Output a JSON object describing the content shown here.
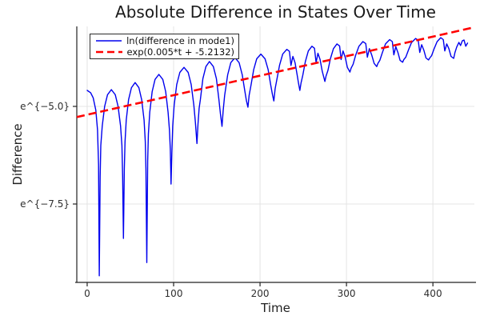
{
  "title": "Absolute Difference in States Over Time",
  "axes": {
    "xlabel": "Time",
    "ylabel": "Difference",
    "x_ticks": [
      {
        "t": 0,
        "label": "0"
      },
      {
        "t": 100,
        "label": "100"
      },
      {
        "t": 200,
        "label": "200"
      },
      {
        "t": 300,
        "label": "300"
      },
      {
        "t": 400,
        "label": "400"
      }
    ],
    "y_ticks": [
      {
        "ln": -5.0,
        "label": "e^{−5.0}"
      },
      {
        "ln": -7.5,
        "label": "e^{−7.5}"
      }
    ],
    "xlim": [
      -12,
      448
    ],
    "ylim_ln": [
      -9.508,
      -2.951
    ],
    "y_scale": "natural-log (tick labels shown as e^{value})",
    "grid": "on"
  },
  "legend": {
    "position": "top-left"
  },
  "colors": {
    "blue": "#0000ee",
    "red": "#ff0000",
    "grid": "#e4e4e4",
    "axis": "#222222",
    "text": "#2e2e2e"
  },
  "chart_data": {
    "type": "line",
    "title": "Absolute Difference in States Over Time",
    "xlabel": "Time",
    "ylabel": "Difference",
    "xlim": [
      -12,
      448
    ],
    "ylim_ln": [
      -9.508,
      -2.951
    ],
    "legend_position": "top-left",
    "series": [
      {
        "name": "ln(difference in mode1)",
        "color": "#0000ee",
        "style": "solid",
        "description": "oscillating |difference| on log scale: arches every ~29 t with sharp cusp minima; early cusps reach e^-9.3, minima rise over time; envelope grows ~exp(0.005t); right half develops secondary notches",
        "points_t_ln": [
          [
            0,
            -4.59
          ],
          [
            4,
            -4.65
          ],
          [
            7,
            -4.78
          ],
          [
            10,
            -5.1
          ],
          [
            12,
            -5.6
          ],
          [
            13.2,
            -6.5
          ],
          [
            14,
            -9.34
          ],
          [
            15,
            -6.8
          ],
          [
            15.8,
            -6.0
          ],
          [
            17.4,
            -5.5
          ],
          [
            20.2,
            -5.0
          ],
          [
            23.5,
            -4.7
          ],
          [
            28,
            -4.57
          ],
          [
            32.5,
            -4.7
          ],
          [
            35.8,
            -5.0
          ],
          [
            38.6,
            -5.5
          ],
          [
            40.2,
            -6.0
          ],
          [
            41,
            -6.8
          ],
          [
            42,
            -8.38
          ],
          [
            43,
            -6.6
          ],
          [
            43.8,
            -5.9
          ],
          [
            45.2,
            -5.35
          ],
          [
            47.9,
            -4.83
          ],
          [
            51.2,
            -4.52
          ],
          [
            55.5,
            -4.39
          ],
          [
            59.8,
            -4.52
          ],
          [
            63.1,
            -4.83
          ],
          [
            65.8,
            -5.35
          ],
          [
            67.2,
            -5.9
          ],
          [
            68,
            -6.6
          ],
          [
            69,
            -9.0
          ],
          [
            70,
            -6.4
          ],
          [
            70.8,
            -5.7
          ],
          [
            72.4,
            -5.15
          ],
          [
            75.2,
            -4.62
          ],
          [
            78.5,
            -4.31
          ],
          [
            83,
            -4.18
          ],
          [
            87.5,
            -4.31
          ],
          [
            90.8,
            -4.62
          ],
          [
            93.6,
            -5.15
          ],
          [
            95.2,
            -5.6
          ],
          [
            96.2,
            -6.1
          ],
          [
            97,
            -6.99
          ],
          [
            98,
            -6.2
          ],
          [
            99,
            -5.5
          ],
          [
            100.6,
            -4.97
          ],
          [
            103.6,
            -4.44
          ],
          [
            107.2,
            -4.13
          ],
          [
            112,
            -4.0
          ],
          [
            116.8,
            -4.13
          ],
          [
            120.4,
            -4.44
          ],
          [
            123.4,
            -4.97
          ],
          [
            125.2,
            -5.4
          ],
          [
            127,
            -5.95
          ],
          [
            128.2,
            -5.45
          ],
          [
            129.5,
            -5.05
          ],
          [
            131,
            -4.82
          ],
          [
            133.9,
            -4.29
          ],
          [
            137.4,
            -3.98
          ],
          [
            141.5,
            -3.85
          ],
          [
            146,
            -3.98
          ],
          [
            149.5,
            -4.29
          ],
          [
            152.4,
            -4.82
          ],
          [
            154.2,
            -5.2
          ],
          [
            156,
            -5.51
          ],
          [
            157.4,
            -5.1
          ],
          [
            159,
            -4.72
          ],
          [
            162.6,
            -4.19
          ],
          [
            166.2,
            -3.88
          ],
          [
            171,
            -3.75
          ],
          [
            175.8,
            -3.88
          ],
          [
            179.4,
            -4.19
          ],
          [
            182.4,
            -4.6
          ],
          [
            184.2,
            -4.85
          ],
          [
            186,
            -5.02
          ],
          [
            187.4,
            -4.72
          ],
          [
            189.6,
            -4.45
          ],
          [
            192.6,
            -4.06
          ],
          [
            196.2,
            -3.78
          ],
          [
            201,
            -3.66
          ],
          [
            205.8,
            -3.78
          ],
          [
            209.4,
            -4.06
          ],
          [
            212.4,
            -4.45
          ],
          [
            214.4,
            -4.7
          ],
          [
            216,
            -4.86
          ],
          [
            217.4,
            -4.55
          ],
          [
            219.6,
            -4.3
          ],
          [
            222.6,
            -3.94
          ],
          [
            226.2,
            -3.66
          ],
          [
            231,
            -3.54
          ],
          [
            234,
            -3.59
          ],
          [
            235.8,
            -3.95
          ],
          [
            238,
            -3.72
          ],
          [
            240.5,
            -3.88
          ],
          [
            243,
            -4.2
          ],
          [
            244.5,
            -4.4
          ],
          [
            246,
            -4.59
          ],
          [
            247.4,
            -4.4
          ],
          [
            249.5,
            -4.2
          ],
          [
            252.4,
            -3.85
          ],
          [
            255.9,
            -3.58
          ],
          [
            260,
            -3.46
          ],
          [
            263,
            -3.51
          ],
          [
            264.8,
            -3.88
          ],
          [
            267,
            -3.64
          ],
          [
            269.5,
            -3.8
          ],
          [
            272,
            -4.1
          ],
          [
            275,
            -4.36
          ],
          [
            276.4,
            -4.22
          ],
          [
            278.5,
            -4.08
          ],
          [
            281.4,
            -3.78
          ],
          [
            284.9,
            -3.52
          ],
          [
            289,
            -3.4
          ],
          [
            292,
            -3.45
          ],
          [
            293.8,
            -3.8
          ],
          [
            296,
            -3.58
          ],
          [
            298.5,
            -3.74
          ],
          [
            301,
            -4.0
          ],
          [
            304,
            -4.12
          ],
          [
            305.4,
            -4.02
          ],
          [
            307.7,
            -3.92
          ],
          [
            310.7,
            -3.68
          ],
          [
            314.4,
            -3.46
          ],
          [
            319,
            -3.34
          ],
          [
            322.3,
            -3.39
          ],
          [
            324.2,
            -3.74
          ],
          [
            326.5,
            -3.52
          ],
          [
            329.2,
            -3.68
          ],
          [
            332,
            -3.9
          ],
          [
            335,
            -3.98
          ],
          [
            336.4,
            -3.9
          ],
          [
            338.6,
            -3.82
          ],
          [
            341.6,
            -3.62
          ],
          [
            345.2,
            -3.4
          ],
          [
            350,
            -3.29
          ],
          [
            353,
            -3.34
          ],
          [
            354.8,
            -3.68
          ],
          [
            357,
            -3.47
          ],
          [
            359.5,
            -3.62
          ],
          [
            362,
            -3.82
          ],
          [
            365,
            -3.87
          ],
          [
            366.4,
            -3.8
          ],
          [
            368.6,
            -3.74
          ],
          [
            371.6,
            -3.56
          ],
          [
            375.2,
            -3.37
          ],
          [
            380,
            -3.26
          ],
          [
            383,
            -3.31
          ],
          [
            384.8,
            -3.62
          ],
          [
            387,
            -3.42
          ],
          [
            389.5,
            -3.56
          ],
          [
            392,
            -3.76
          ],
          [
            395,
            -3.81
          ],
          [
            396.4,
            -3.76
          ],
          [
            398.5,
            -3.7
          ],
          [
            401.4,
            -3.52
          ],
          [
            404.9,
            -3.34
          ],
          [
            409,
            -3.24
          ],
          [
            412,
            -3.29
          ],
          [
            413.8,
            -3.58
          ],
          [
            416,
            -3.4
          ],
          [
            418.5,
            -3.52
          ],
          [
            421,
            -3.72
          ],
          [
            424,
            -3.77
          ],
          [
            425.5,
            -3.62
          ],
          [
            427.5,
            -3.48
          ],
          [
            430,
            -3.36
          ],
          [
            432,
            -3.44
          ],
          [
            434,
            -3.32
          ],
          [
            436,
            -3.3
          ],
          [
            438,
            -3.46
          ],
          [
            440,
            -3.38
          ]
        ]
      },
      {
        "name": "exp(0.005*t + -5.2132)",
        "color": "#ff0000",
        "style": "dashed",
        "slope": 0.005,
        "intercept": -5.2132,
        "t_range": [
          -12,
          447
        ]
      }
    ]
  }
}
